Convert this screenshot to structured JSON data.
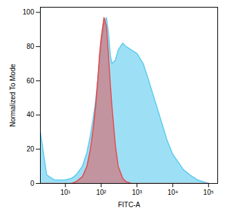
{
  "chart_data": {
    "type": "area",
    "x_label": "FITC-A",
    "y_label": "Normalized To Mode",
    "log": "x",
    "x": [
      2,
      3,
      5,
      10,
      15,
      20,
      30,
      40,
      50,
      60,
      70,
      80,
      90,
      100,
      120,
      140,
      160,
      180,
      200,
      250,
      300,
      400,
      500,
      700,
      1000,
      1500,
      2000,
      3000,
      5000,
      7000,
      10000,
      20000,
      30000,
      50000,
      100000
    ],
    "series": [
      {
        "color": "#5ccbef",
        "values": [
          30,
          5,
          2,
          2,
          3,
          5,
          10,
          18,
          28,
          38,
          48,
          60,
          72,
          82,
          93,
          97,
          88,
          75,
          70,
          72,
          78,
          82,
          80,
          78,
          76,
          70,
          62,
          50,
          35,
          25,
          17,
          8,
          5,
          2,
          0
        ]
      },
      {
        "color": "#e8474a",
        "values": [
          0,
          0,
          0,
          0,
          0,
          1,
          4,
          10,
          20,
          32,
          45,
          60,
          75,
          85,
          97,
          92,
          75,
          58,
          45,
          22,
          10,
          3,
          1,
          0,
          0,
          0,
          0,
          0,
          0,
          0,
          0,
          0,
          0,
          0,
          0
        ]
      }
    ],
    "xlim": [
      2,
      180000
    ],
    "xticks": [
      {
        "value": 10,
        "label": "10¹"
      },
      {
        "value": 100,
        "label": "10²"
      },
      {
        "value": 1000,
        "label": "10³"
      },
      {
        "value": 10000,
        "label": "10⁴"
      },
      {
        "value": 100000,
        "label": "10⁵"
      }
    ],
    "ylim": [
      0,
      103
    ],
    "yticks": [
      0,
      20,
      40,
      60,
      80,
      100
    ],
    "grid": false
  }
}
